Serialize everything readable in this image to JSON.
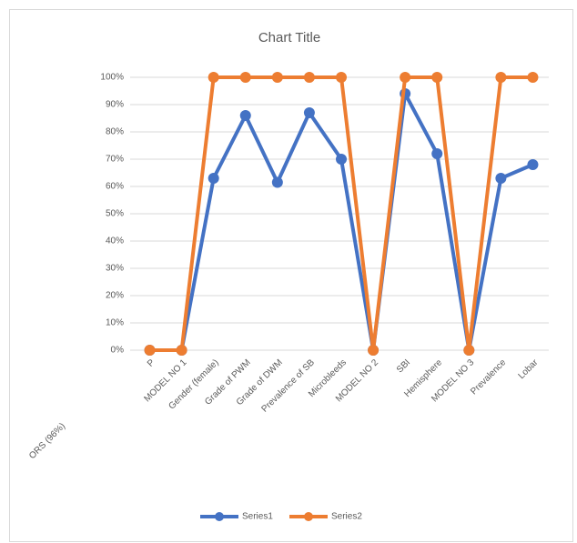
{
  "chart_data": {
    "type": "line",
    "title": "Chart Title",
    "x_label": "ORS (96%)",
    "categories": [
      "P",
      "MODEL NO 1",
      "Gender (female)",
      "Grade of PWM",
      "Grade of DWM",
      "Prevalence of SB",
      "Microbleeds",
      "MODEL NO 2",
      "SBI",
      "Hemisphere",
      "MODEL NO 3",
      "Prevalence",
      "Lobar"
    ],
    "series": [
      {
        "name": "Series1",
        "color": "#4472c4",
        "values": [
          0,
          0,
          63,
          86,
          61.5,
          87,
          70,
          0,
          94,
          72,
          0,
          63,
          68
        ]
      },
      {
        "name": "Series2",
        "color": "#ed7d31",
        "values": [
          0,
          0,
          100,
          100,
          100,
          100,
          100,
          0,
          100,
          100,
          0,
          100,
          100
        ]
      }
    ],
    "ylim": [
      0,
      100
    ],
    "yticks": [
      {
        "value": 0,
        "label": "0%"
      },
      {
        "value": 10,
        "label": "10%"
      },
      {
        "value": 20,
        "label": "20%"
      },
      {
        "value": 30,
        "label": "30%"
      },
      {
        "value": 40,
        "label": "40%"
      },
      {
        "value": 50,
        "label": "50%"
      },
      {
        "value": 60,
        "label": "60%"
      },
      {
        "value": 70,
        "label": "70%"
      },
      {
        "value": 80,
        "label": "80%"
      },
      {
        "value": 90,
        "label": "90%"
      },
      {
        "value": 100,
        "label": "100%"
      }
    ],
    "grid": true,
    "legend": "bottom"
  }
}
